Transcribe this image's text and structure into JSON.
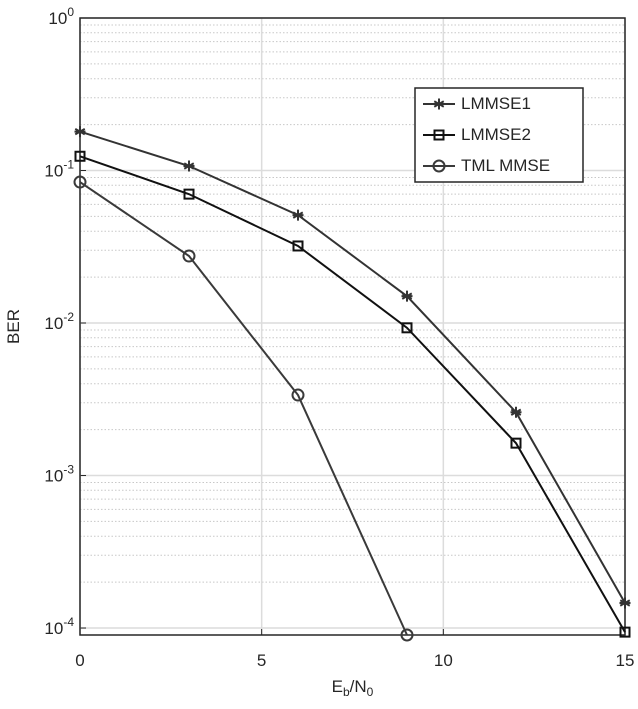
{
  "chart_data": {
    "type": "line",
    "log_y": true,
    "grid": true,
    "minor_grid": true,
    "legend": "upper right",
    "x_label": "E_{b}/N_{0}",
    "y_label": "BER",
    "x": [
      0,
      3,
      6,
      9,
      12,
      15
    ],
    "series": [
      {
        "name": "LMMSE1",
        "color": "#333333",
        "marker": "asterisk",
        "values": [
          0.18,
          0.107,
          0.051,
          0.015,
          0.0026,
          0.000146
        ]
      },
      {
        "name": "LMMSE2",
        "color": "#111111",
        "marker": "square",
        "values": [
          0.124,
          0.07,
          0.032,
          0.0093,
          0.00163,
          9.4e-05
        ]
      },
      {
        "name": "TML MMSE",
        "color": "#3a3a3a",
        "marker": "circle",
        "values": [
          0.084,
          0.0275,
          0.00337,
          9e-05,
          null,
          null
        ]
      }
    ],
    "xlim": [
      0,
      15
    ],
    "xticks": [
      0,
      5,
      10,
      15
    ],
    "ylim": [
      9e-05,
      1
    ],
    "yticks": [
      {
        "value": 1,
        "label": "10^{0}"
      },
      {
        "value": 0.1,
        "label": "10^{-1}"
      },
      {
        "value": 0.01,
        "label": "10^{-2}"
      },
      {
        "value": 0.001,
        "label": "10^{-3}"
      },
      {
        "value": 0.0001,
        "label": "10^{-4}"
      }
    ]
  }
}
